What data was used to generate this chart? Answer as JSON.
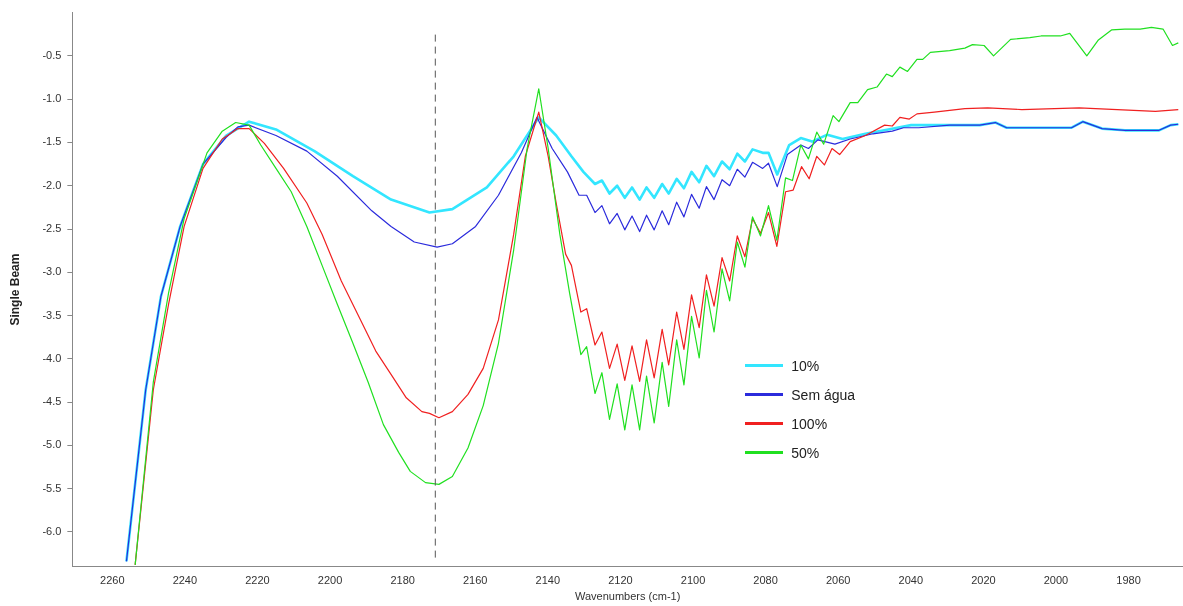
{
  "chart_data": {
    "type": "line",
    "xlabel": "Wavenumbers (cm-1)",
    "ylabel": "Single Beam",
    "xlim": [
      2271,
      1965
    ],
    "ylim": [
      -6.4,
      0
    ],
    "xticks": [
      2260,
      2240,
      2220,
      2200,
      2180,
      2160,
      2140,
      2120,
      2100,
      2080,
      2060,
      2040,
      2020,
      2000,
      1980
    ],
    "yticks": [
      {
        "value": -0.5,
        "label": "-0.5"
      },
      {
        "value": -1,
        "label": "-1.0"
      },
      {
        "value": -1.5,
        "label": "-1.5"
      },
      {
        "value": -2,
        "label": "-2.0"
      },
      {
        "value": -2.5,
        "label": "-2.5"
      },
      {
        "value": -3,
        "label": "-3.0"
      },
      {
        "value": -3.5,
        "label": "-3.5"
      },
      {
        "value": -4,
        "label": "-4.0"
      },
      {
        "value": -4.5,
        "label": "-4.5"
      },
      {
        "value": -5,
        "label": "-5.0"
      },
      {
        "value": -5.5,
        "label": "-5.5"
      },
      {
        "value": -6,
        "label": "-6.0"
      }
    ],
    "grid": false,
    "legend": "center",
    "marker": "none",
    "line_style": "solid",
    "ref_lines": [
      {
        "axis": "x",
        "value": 2171,
        "color": "#555555",
        "line_style": "dashed"
      }
    ],
    "series": [
      {
        "name": "10%",
        "color": "#33e6ff",
        "x": [
          2256.1,
          2250.8,
          2246.6,
          2241.3,
          2235.0,
          2228.6,
          2222.3,
          2214.9,
          2204.3,
          2193.7,
          2183.2,
          2172.6,
          2166.3,
          2156.8,
          2149.4,
          2142.5,
          2137.7,
          2133.5,
          2130.2,
          2127.0,
          2125.1,
          2123.0,
          2120.9,
          2118.8,
          2116.8,
          2114.7,
          2112.8,
          2110.7,
          2108.5,
          2106.7,
          2104.5,
          2102.5,
          2100.4,
          2098.3,
          2096.3,
          2094.2,
          2092.0,
          2089.9,
          2087.8,
          2085.7,
          2083.6,
          2080.8,
          2079.2,
          2076.8,
          2073.5,
          2070.3,
          2067.2,
          2063.0,
          2058.8,
          2052.5,
          2046.2,
          2039.9,
          2029.3,
          2021.0,
          2016.7,
          2013.6,
          2004.1,
          1995.7,
          1992.6,
          1987.3,
          1981.0,
          1971.6,
          1968.4,
          1966.3
        ],
        "values": [
          -6.34,
          -4.36,
          -3.28,
          -2.47,
          -1.75,
          -1.42,
          -1.26,
          -1.35,
          -1.6,
          -1.89,
          -2.16,
          -2.31,
          -2.27,
          -2.02,
          -1.66,
          -1.21,
          -1.42,
          -1.66,
          -1.84,
          -1.98,
          -1.94,
          -2.09,
          -2.0,
          -2.14,
          -2.02,
          -2.16,
          -2.02,
          -2.14,
          -1.98,
          -2.09,
          -1.92,
          -2.03,
          -1.84,
          -1.96,
          -1.77,
          -1.89,
          -1.72,
          -1.81,
          -1.63,
          -1.72,
          -1.58,
          -1.62,
          -1.62,
          -1.87,
          -1.53,
          -1.45,
          -1.49,
          -1.41,
          -1.46,
          -1.4,
          -1.35,
          -1.3,
          -1.3,
          -1.3,
          -1.27,
          -1.33,
          -1.33,
          -1.33,
          -1.26,
          -1.34,
          -1.36,
          -1.36,
          -1.3,
          -1.29
        ]
      },
      {
        "name": "Sem água",
        "color": "#2b2bdc",
        "x": [
          2256.1,
          2250.8,
          2246.6,
          2241.3,
          2235.0,
          2228.6,
          2225.4,
          2222.3,
          2214.9,
          2206.4,
          2198.0,
          2188.5,
          2183.2,
          2176.8,
          2170.5,
          2166.3,
          2159.9,
          2153.6,
          2147.3,
          2143.0,
          2138.8,
          2134.6,
          2131.4,
          2129.3,
          2127.0,
          2125.1,
          2123.0,
          2120.9,
          2118.8,
          2116.8,
          2114.7,
          2112.8,
          2110.7,
          2108.5,
          2106.7,
          2104.5,
          2102.5,
          2100.4,
          2098.3,
          2096.3,
          2094.2,
          2092.0,
          2089.9,
          2087.8,
          2085.7,
          2083.6,
          2080.8,
          2079.2,
          2076.8,
          2074.0,
          2070.3,
          2068.2,
          2065.6,
          2060.9,
          2056.7,
          2050.4,
          2045.1,
          2042.0,
          2037.8,
          2029.3,
          2021.0,
          2016.7,
          2013.6,
          2004.1,
          1995.7,
          1992.6,
          1987.3,
          1981.0,
          1971.6,
          1968.4,
          1966.3
        ],
        "values": [
          -6.34,
          -4.36,
          -3.28,
          -2.47,
          -1.75,
          -1.44,
          -1.32,
          -1.3,
          -1.42,
          -1.6,
          -1.89,
          -2.29,
          -2.47,
          -2.65,
          -2.71,
          -2.67,
          -2.47,
          -2.11,
          -1.62,
          -1.21,
          -1.57,
          -1.84,
          -2.11,
          -2.11,
          -2.31,
          -2.23,
          -2.44,
          -2.32,
          -2.51,
          -2.35,
          -2.53,
          -2.34,
          -2.51,
          -2.29,
          -2.45,
          -2.19,
          -2.36,
          -2.1,
          -2.26,
          -2.01,
          -2.16,
          -1.93,
          -2.0,
          -1.81,
          -1.9,
          -1.73,
          -1.8,
          -1.74,
          -2.01,
          -1.64,
          -1.53,
          -1.57,
          -1.47,
          -1.52,
          -1.46,
          -1.4,
          -1.37,
          -1.33,
          -1.33,
          -1.3,
          -1.3,
          -1.27,
          -1.33,
          -1.33,
          -1.33,
          -1.26,
          -1.34,
          -1.36,
          -1.36,
          -1.3,
          -1.29
        ]
      },
      {
        "name": "100%",
        "color": "#f02020",
        "x": [
          2253.7,
          2248.7,
          2244.5,
          2240.2,
          2235.0,
          2229.7,
          2225.4,
          2222.3,
          2218.1,
          2212.8,
          2206.4,
          2202.2,
          2196.9,
          2191.6,
          2187.4,
          2183.2,
          2179.0,
          2174.7,
          2172.6,
          2170.0,
          2166.3,
          2162.0,
          2157.8,
          2153.6,
          2149.4,
          2146.2,
          2142.5,
          2139.9,
          2137.7,
          2135.1,
          2133.5,
          2130.9,
          2129.3,
          2127.0,
          2125.1,
          2123.0,
          2120.9,
          2118.8,
          2116.8,
          2114.7,
          2112.8,
          2110.7,
          2108.5,
          2106.7,
          2104.5,
          2102.5,
          2100.4,
          2098.3,
          2096.3,
          2094.2,
          2092.0,
          2089.9,
          2087.8,
          2085.7,
          2083.6,
          2081.4,
          2079.2,
          2076.9,
          2074.5,
          2072.4,
          2070.1,
          2068.0,
          2065.9,
          2063.8,
          2061.7,
          2059.6,
          2056.7,
          2052.5,
          2047.2,
          2045.1,
          2043.0,
          2040.4,
          2038.3,
          2033.5,
          2025.1,
          2018.8,
          2009.4,
          1993.6,
          1983.1,
          1972.6,
          1966.3
        ],
        "values": [
          -6.38,
          -4.36,
          -3.37,
          -2.47,
          -1.8,
          -1.46,
          -1.34,
          -1.34,
          -1.51,
          -1.8,
          -2.2,
          -2.56,
          -3.1,
          -3.55,
          -3.91,
          -4.18,
          -4.45,
          -4.61,
          -4.63,
          -4.68,
          -4.61,
          -4.41,
          -4.11,
          -3.55,
          -2.56,
          -1.66,
          -1.15,
          -1.66,
          -2.2,
          -2.79,
          -2.92,
          -3.46,
          -3.42,
          -3.84,
          -3.69,
          -4.11,
          -3.83,
          -4.25,
          -3.85,
          -4.26,
          -3.78,
          -4.22,
          -3.66,
          -4.07,
          -3.46,
          -3.89,
          -3.26,
          -3.64,
          -3.03,
          -3.39,
          -2.83,
          -3.1,
          -2.58,
          -2.82,
          -2.38,
          -2.55,
          -2.31,
          -2.7,
          -2.07,
          -2.05,
          -1.78,
          -1.92,
          -1.66,
          -1.76,
          -1.57,
          -1.64,
          -1.49,
          -1.42,
          -1.3,
          -1.31,
          -1.21,
          -1.23,
          -1.17,
          -1.15,
          -1.11,
          -1.1,
          -1.12,
          -1.1,
          -1.12,
          -1.14,
          -1.12
        ]
      },
      {
        "name": "50%",
        "color": "#20e020",
        "x": [
          2253.7,
          2248.7,
          2244.5,
          2240.2,
          2233.9,
          2229.7,
          2226.0,
          2222.3,
          2219.1,
          2214.9,
          2210.7,
          2206.4,
          2202.2,
          2198.0,
          2193.7,
          2189.5,
          2185.3,
          2181.1,
          2177.9,
          2173.7,
          2170.0,
          2166.3,
          2162.0,
          2157.8,
          2153.6,
          2149.4,
          2145.7,
          2142.5,
          2139.9,
          2136.7,
          2134.0,
          2130.9,
          2129.3,
          2127.0,
          2125.1,
          2123.0,
          2120.9,
          2118.8,
          2116.8,
          2114.7,
          2112.8,
          2110.7,
          2108.5,
          2106.7,
          2104.5,
          2102.5,
          2100.4,
          2098.3,
          2096.3,
          2094.2,
          2092.0,
          2089.9,
          2087.8,
          2085.7,
          2083.6,
          2081.4,
          2079.2,
          2076.9,
          2074.5,
          2072.6,
          2070.3,
          2068.2,
          2065.9,
          2064.0,
          2061.4,
          2059.8,
          2056.7,
          2054.6,
          2051.9,
          2049.3,
          2046.7,
          2045.1,
          2043.0,
          2040.9,
          2038.3,
          2036.7,
          2034.6,
          2029.3,
          2025.1,
          2023.0,
          2019.8,
          2017.2,
          2012.5,
          2007.2,
          2004.1,
          1998.8,
          1996.2,
          1991.5,
          1988.4,
          1984.7,
          1981.0,
          1976.8,
          1973.7,
          1970.5,
          1967.9,
          1966.3
        ],
        "values": [
          -6.38,
          -4.27,
          -3.24,
          -2.38,
          -1.62,
          -1.37,
          -1.27,
          -1.3,
          -1.53,
          -1.8,
          -2.07,
          -2.47,
          -2.92,
          -3.37,
          -3.82,
          -4.27,
          -4.76,
          -5.08,
          -5.3,
          -5.43,
          -5.45,
          -5.36,
          -5.03,
          -4.54,
          -3.82,
          -2.74,
          -1.57,
          -0.88,
          -1.57,
          -2.56,
          -3.24,
          -3.95,
          -3.86,
          -4.4,
          -4.16,
          -4.7,
          -4.29,
          -4.82,
          -4.3,
          -4.82,
          -4.2,
          -4.74,
          -4.04,
          -4.55,
          -3.78,
          -4.3,
          -3.51,
          -3.99,
          -3.21,
          -3.69,
          -2.96,
          -3.33,
          -2.65,
          -2.94,
          -2.36,
          -2.58,
          -2.23,
          -2.63,
          -1.91,
          -1.94,
          -1.53,
          -1.69,
          -1.38,
          -1.52,
          -1.19,
          -1.26,
          -1.04,
          -1.04,
          -0.89,
          -0.86,
          -0.71,
          -0.74,
          -0.63,
          -0.68,
          -0.54,
          -0.54,
          -0.46,
          -0.44,
          -0.41,
          -0.37,
          -0.38,
          -0.5,
          -0.31,
          -0.29,
          -0.27,
          -0.27,
          -0.24,
          -0.5,
          -0.32,
          -0.2,
          -0.19,
          -0.19,
          -0.17,
          -0.19,
          -0.38,
          -0.35
        ]
      }
    ]
  }
}
